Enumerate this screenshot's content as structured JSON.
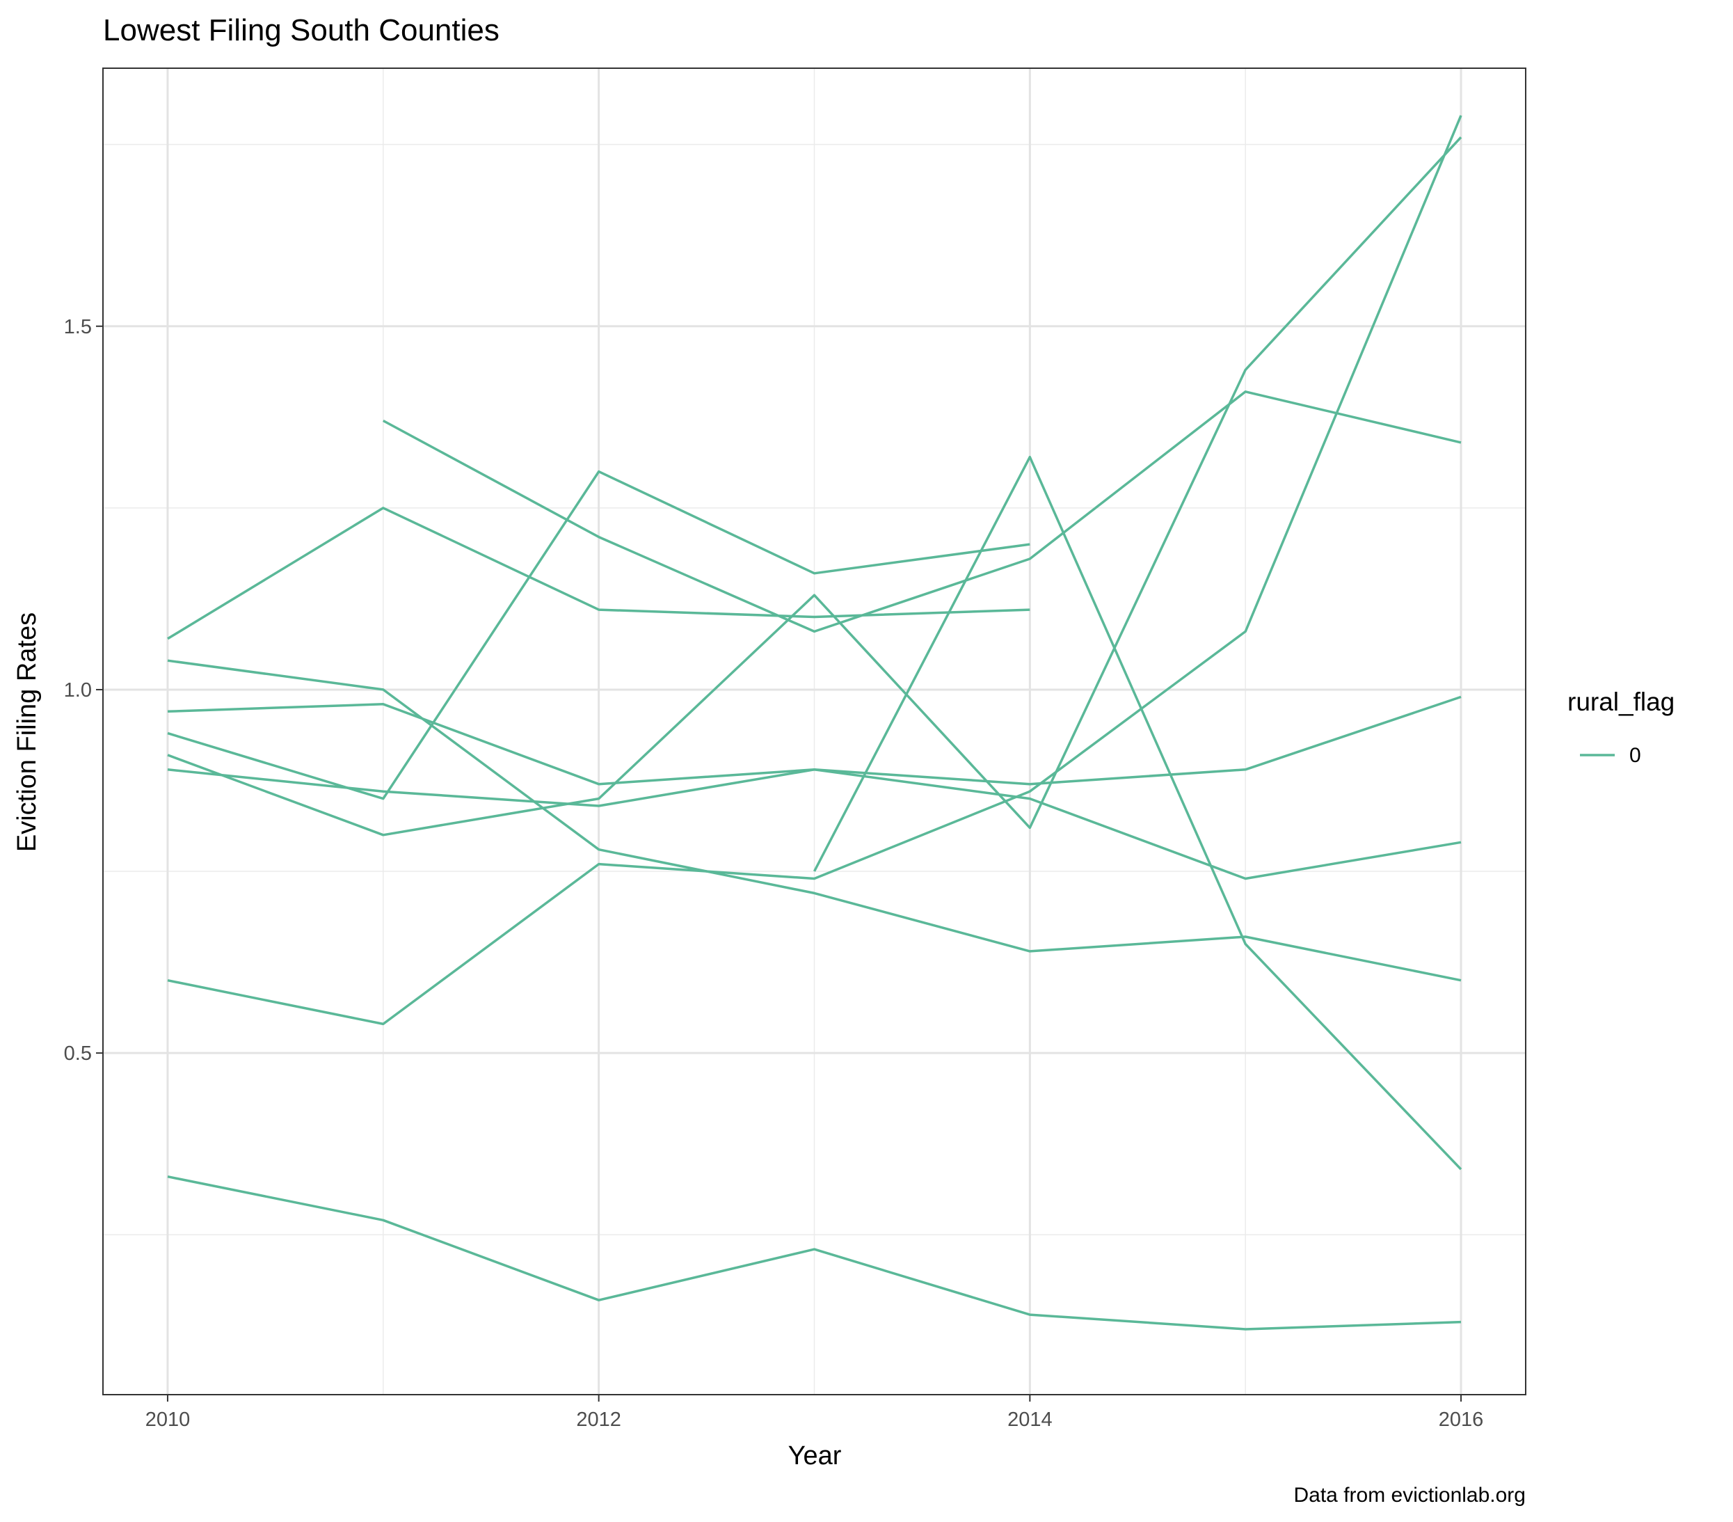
{
  "chart_data": {
    "type": "line",
    "title": "Lowest Filing South Counties",
    "xlabel": "Year",
    "ylabel": "Eviction Filing Rates",
    "caption": "Data from evictionlab.org",
    "xlim": [
      2009.7,
      2016.3
    ],
    "ylim": [
      0.03,
      1.855
    ],
    "x_ticks": [
      2010,
      2012,
      2014,
      2016
    ],
    "x_tick_labels": [
      "2010",
      "2012",
      "2014",
      "2016"
    ],
    "y_ticks": [
      0.5,
      1.0,
      1.5
    ],
    "y_tick_labels": [
      "0.5",
      "1.0",
      "1.5"
    ],
    "grid": true,
    "legend": {
      "title": "rural_flag",
      "position": "right",
      "entries": [
        {
          "label": "0",
          "color": "#5ab898"
        }
      ]
    },
    "series_color": "#5ab898",
    "series": [
      {
        "x": [
          2010,
          2011,
          2012,
          2013,
          2014,
          2015,
          2016
        ],
        "values": [
          0.33,
          0.27,
          0.16,
          0.23,
          0.14,
          0.12,
          0.13
        ]
      },
      {
        "x": [
          2010,
          2011,
          2012,
          2013,
          2014,
          2015,
          2016
        ],
        "values": [
          0.6,
          0.54,
          0.76,
          0.74,
          0.86,
          1.08,
          1.79
        ]
      },
      {
        "x": [
          2010,
          2011,
          2012,
          2013,
          2014,
          2015,
          2016
        ],
        "values": [
          0.89,
          0.86,
          0.84,
          0.89,
          0.87,
          0.89,
          0.99
        ]
      },
      {
        "x": [
          2010,
          2011,
          2012,
          2013,
          2014,
          2015,
          2016
        ],
        "values": [
          0.97,
          0.98,
          0.87,
          0.89,
          0.85,
          0.74,
          0.79
        ]
      },
      {
        "x": [
          2010,
          2011,
          2012,
          2013,
          2014,
          2015,
          2016
        ],
        "values": [
          1.04,
          1.0,
          0.78,
          0.72,
          0.64,
          0.66,
          0.6
        ]
      },
      {
        "x": [
          2010,
          2011,
          2012,
          2013,
          2014,
          2015,
          2016
        ],
        "values": [
          0.91,
          0.8,
          0.85,
          1.13,
          0.81,
          1.44,
          1.76
        ]
      },
      {
        "x": [
          2010,
          2011,
          2012,
          2013,
          2014
        ],
        "values": [
          1.07,
          1.25,
          1.11,
          1.1,
          1.11
        ]
      },
      {
        "x": [
          2010,
          2011,
          2012,
          2013,
          2014
        ],
        "values": [
          0.94,
          0.85,
          1.3,
          1.16,
          1.2
        ]
      },
      {
        "x": [
          2011,
          2012,
          2013,
          2014,
          2015,
          2016
        ],
        "values": [
          1.37,
          1.21,
          1.08,
          1.18,
          1.41,
          1.34
        ]
      },
      {
        "x": [
          2013,
          2014,
          2015,
          2016
        ],
        "values": [
          0.75,
          1.32,
          0.65,
          0.34
        ]
      }
    ]
  }
}
